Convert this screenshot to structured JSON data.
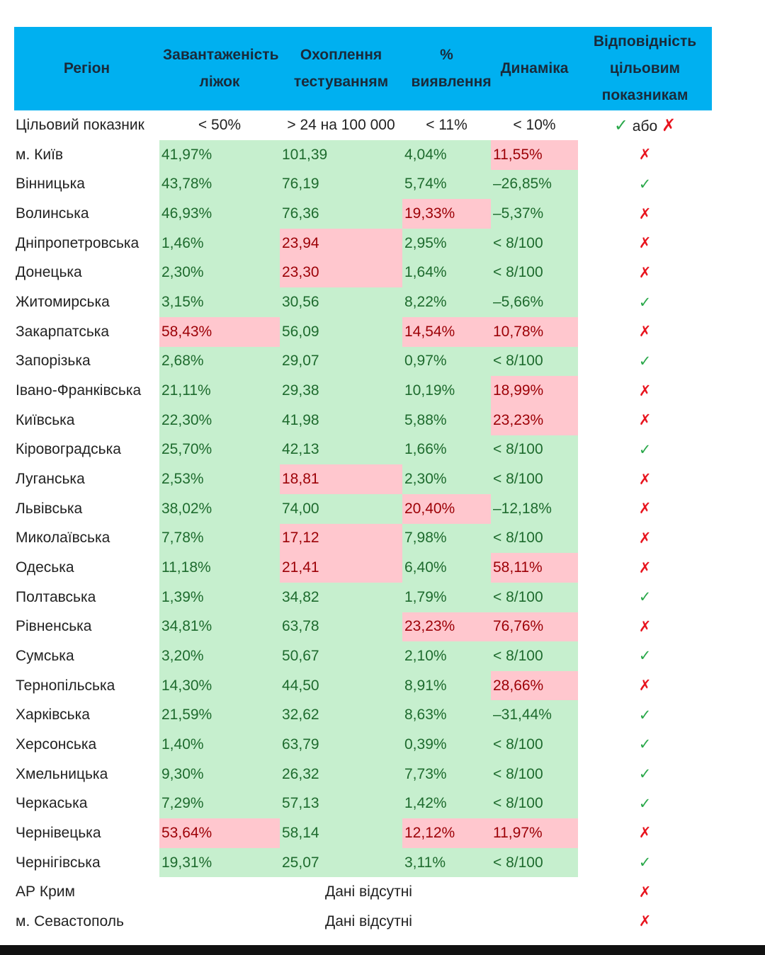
{
  "header": {
    "region": "Регіон",
    "beds": "Завантаженість ліжок",
    "testing": "Охоплення тестуванням",
    "detection": "% виявлення",
    "dynamics": "Динаміка",
    "compliance": "Відповідність цільовим показникам"
  },
  "target": {
    "label": "Цільовий показник",
    "beds": "< 50%",
    "testing": "> 24 на 100 000",
    "detection": "< 11%",
    "dynamics": "< 10%",
    "check": "✓",
    "or": "або",
    "cross": "✗"
  },
  "colors": {
    "header": "#00b0f0",
    "good_fill": "#c6efce",
    "good_text": "#1e6b2e",
    "bad_fill": "#ffc7ce",
    "bad_text": "#9c0006"
  },
  "rows": [
    {
      "region": "м. Київ",
      "values": [
        "41,97%",
        "101,39",
        "4,04%",
        "11,55%"
      ],
      "bad": [
        0,
        0,
        0,
        1
      ],
      "ok": false
    },
    {
      "region": "Вінницька",
      "values": [
        "43,78%",
        "76,19",
        "5,74%",
        "–26,85%"
      ],
      "bad": [
        0,
        0,
        0,
        0
      ],
      "ok": true
    },
    {
      "region": "Волинська",
      "values": [
        "46,93%",
        "76,36",
        "19,33%",
        "–5,37%"
      ],
      "bad": [
        0,
        0,
        1,
        0
      ],
      "ok": false
    },
    {
      "region": "Дніпропетровська",
      "values": [
        "1,46%",
        "23,94",
        "2,95%",
        "< 8/100"
      ],
      "bad": [
        0,
        1,
        0,
        0
      ],
      "ok": false
    },
    {
      "region": "Донецька",
      "values": [
        "2,30%",
        "23,30",
        "1,64%",
        "< 8/100"
      ],
      "bad": [
        0,
        1,
        0,
        0
      ],
      "ok": false
    },
    {
      "region": "Житомирська",
      "values": [
        "3,15%",
        "30,56",
        "8,22%",
        "–5,66%"
      ],
      "bad": [
        0,
        0,
        0,
        0
      ],
      "ok": true
    },
    {
      "region": "Закарпатська",
      "values": [
        "58,43%",
        "56,09",
        "14,54%",
        "10,78%"
      ],
      "bad": [
        1,
        0,
        1,
        1
      ],
      "ok": false
    },
    {
      "region": "Запорізька",
      "values": [
        "2,68%",
        "29,07",
        "0,97%",
        "< 8/100"
      ],
      "bad": [
        0,
        0,
        0,
        0
      ],
      "ok": true
    },
    {
      "region": "Івано-Франківська",
      "values": [
        "21,11%",
        "29,38",
        "10,19%",
        "18,99%"
      ],
      "bad": [
        0,
        0,
        0,
        1
      ],
      "ok": false
    },
    {
      "region": "Київська",
      "values": [
        "22,30%",
        "41,98",
        "5,88%",
        "23,23%"
      ],
      "bad": [
        0,
        0,
        0,
        1
      ],
      "ok": false
    },
    {
      "region": "Кіровоградська",
      "values": [
        "25,70%",
        "42,13",
        "1,66%",
        "< 8/100"
      ],
      "bad": [
        0,
        0,
        0,
        0
      ],
      "ok": true
    },
    {
      "region": "Луганська",
      "values": [
        "2,53%",
        "18,81",
        "2,30%",
        "< 8/100"
      ],
      "bad": [
        0,
        1,
        0,
        0
      ],
      "ok": false
    },
    {
      "region": "Львівська",
      "values": [
        "38,02%",
        "74,00",
        "20,40%",
        "–12,18%"
      ],
      "bad": [
        0,
        0,
        1,
        0
      ],
      "ok": false
    },
    {
      "region": "Миколаївська",
      "values": [
        "7,78%",
        "17,12",
        "7,98%",
        "< 8/100"
      ],
      "bad": [
        0,
        1,
        0,
        0
      ],
      "ok": false
    },
    {
      "region": "Одеська",
      "values": [
        "11,18%",
        "21,41",
        "6,40%",
        "58,11%"
      ],
      "bad": [
        0,
        1,
        0,
        1
      ],
      "ok": false
    },
    {
      "region": "Полтавська",
      "values": [
        "1,39%",
        "34,82",
        "1,79%",
        "< 8/100"
      ],
      "bad": [
        0,
        0,
        0,
        0
      ],
      "ok": true
    },
    {
      "region": "Рівненська",
      "values": [
        "34,81%",
        "63,78",
        "23,23%",
        "76,76%"
      ],
      "bad": [
        0,
        0,
        1,
        1
      ],
      "ok": false
    },
    {
      "region": "Сумська",
      "values": [
        "3,20%",
        "50,67",
        "2,10%",
        "< 8/100"
      ],
      "bad": [
        0,
        0,
        0,
        0
      ],
      "ok": true
    },
    {
      "region": "Тернопільська",
      "values": [
        "14,30%",
        "44,50",
        "8,91%",
        "28,66%"
      ],
      "bad": [
        0,
        0,
        0,
        1
      ],
      "ok": false
    },
    {
      "region": "Харківська",
      "values": [
        "21,59%",
        "32,62",
        "8,63%",
        "–31,44%"
      ],
      "bad": [
        0,
        0,
        0,
        0
      ],
      "ok": true
    },
    {
      "region": "Херсонська",
      "values": [
        "1,40%",
        "63,79",
        "0,39%",
        "< 8/100"
      ],
      "bad": [
        0,
        0,
        0,
        0
      ],
      "ok": true
    },
    {
      "region": "Хмельницька",
      "values": [
        "9,30%",
        "26,32",
        "7,73%",
        "< 8/100"
      ],
      "bad": [
        0,
        0,
        0,
        0
      ],
      "ok": true
    },
    {
      "region": "Черкаська",
      "values": [
        "7,29%",
        "57,13",
        "1,42%",
        "< 8/100"
      ],
      "bad": [
        0,
        0,
        0,
        0
      ],
      "ok": true
    },
    {
      "region": "Чернівецька",
      "values": [
        "53,64%",
        "58,14",
        "12,12%",
        "11,97%"
      ],
      "bad": [
        1,
        0,
        1,
        1
      ],
      "ok": false
    },
    {
      "region": "Чернігівська",
      "values": [
        "19,31%",
        "25,07",
        "3,11%",
        "< 8/100"
      ],
      "bad": [
        0,
        0,
        0,
        0
      ],
      "ok": true
    }
  ],
  "missing": [
    {
      "region": "АР Крим",
      "note": "Дані відсутні",
      "ok": false
    },
    {
      "region": "м. Севастополь",
      "note": "Дані відсутні",
      "ok": false
    }
  ],
  "marks": {
    "ok": "✓",
    "bad": "✗"
  }
}
